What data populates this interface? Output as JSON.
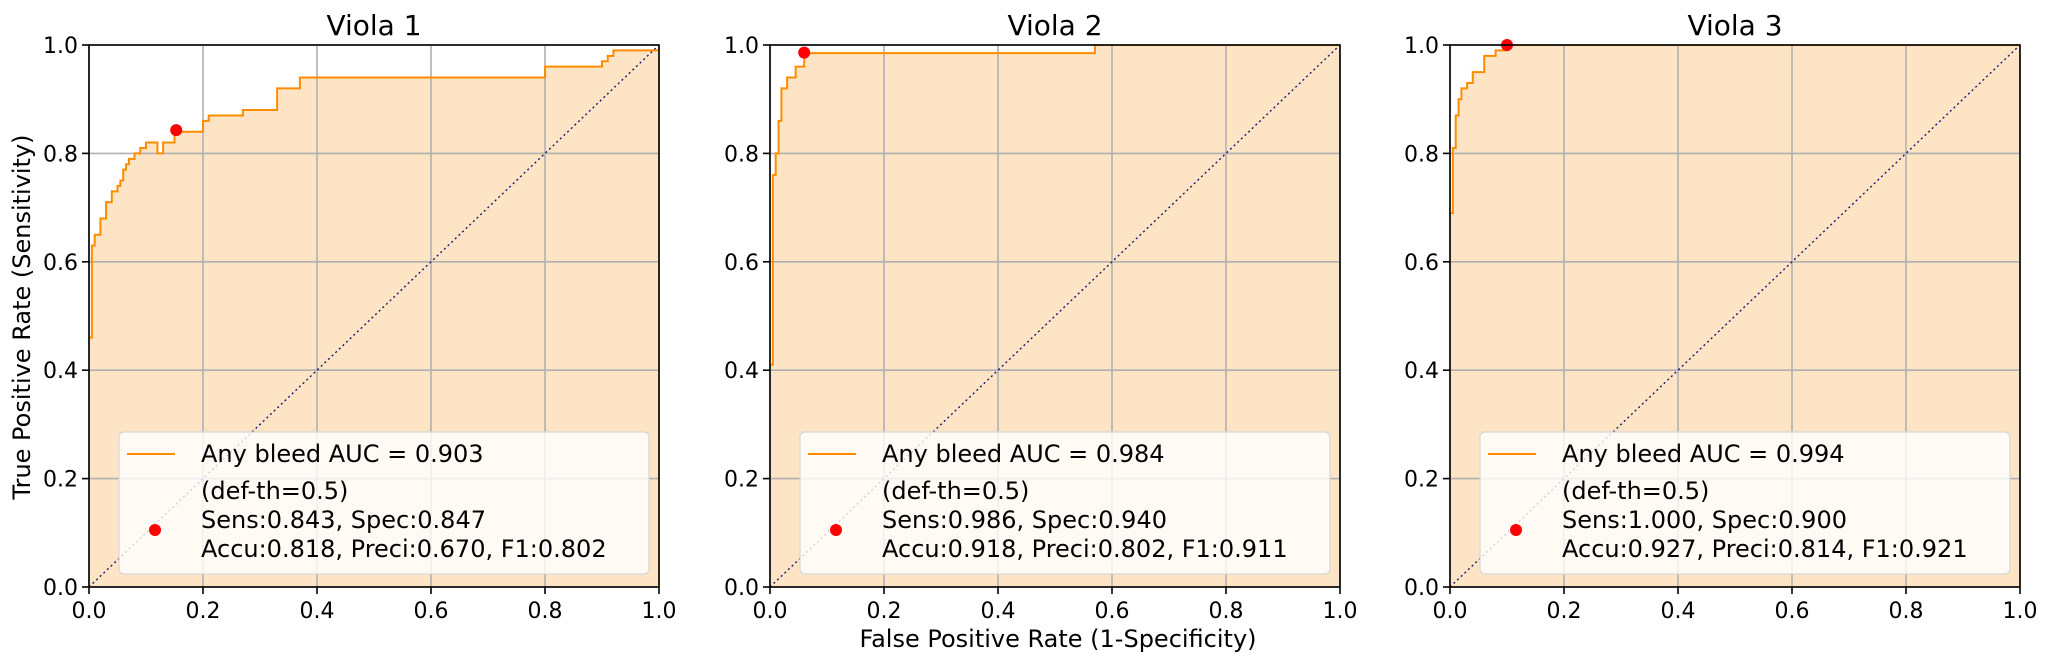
{
  "figure": {
    "xlabel": "False Positive Rate (1-Specificity)",
    "ylabel": "True Positive Rate (Sensitivity)"
  },
  "colors": {
    "roc_line": "#ff8c00",
    "fill": "#fde4c4",
    "point": "#ff0000",
    "diagonal": "#191970",
    "grid": "#b0b0b0",
    "legend_bg": "#ffffff"
  },
  "chart_data": [
    {
      "type": "line",
      "title": "Viola 1",
      "xlim": [
        0,
        1
      ],
      "ylim": [
        0,
        1
      ],
      "xticks": [
        "0.0",
        "0.2",
        "0.4",
        "0.6",
        "0.8",
        "1.0"
      ],
      "yticks": [
        "0.0",
        "0.2",
        "0.4",
        "0.6",
        "0.8",
        "1.0"
      ],
      "grid": true,
      "legend_position": "lower-right",
      "series": [
        {
          "name": "Any bleed AUC = 0.903",
          "x": [
            0,
            0.005,
            0.005,
            0.01,
            0.01,
            0.02,
            0.02,
            0.03,
            0.03,
            0.04,
            0.04,
            0.05,
            0.05,
            0.055,
            0.055,
            0.06,
            0.06,
            0.065,
            0.065,
            0.07,
            0.07,
            0.08,
            0.08,
            0.09,
            0.09,
            0.1,
            0.1,
            0.12,
            0.12,
            0.13,
            0.13,
            0.15,
            0.15,
            0.16,
            0.16,
            0.2,
            0.2,
            0.21,
            0.21,
            0.27,
            0.27,
            0.33,
            0.33,
            0.34,
            0.34,
            0.37,
            0.37,
            0.8,
            0.8,
            0.9,
            0.9,
            0.91,
            0.91,
            0.92,
            0.92,
            1.0
          ],
          "y": [
            0.46,
            0.46,
            0.63,
            0.63,
            0.65,
            0.65,
            0.68,
            0.68,
            0.71,
            0.71,
            0.73,
            0.73,
            0.74,
            0.74,
            0.75,
            0.75,
            0.77,
            0.77,
            0.78,
            0.78,
            0.79,
            0.79,
            0.8,
            0.8,
            0.81,
            0.81,
            0.82,
            0.82,
            0.8,
            0.8,
            0.82,
            0.82,
            0.84,
            0.84,
            0.84,
            0.84,
            0.86,
            0.86,
            0.87,
            0.87,
            0.88,
            0.88,
            0.92,
            0.92,
            0.92,
            0.92,
            0.94,
            0.94,
            0.96,
            0.96,
            0.97,
            0.97,
            0.98,
            0.98,
            0.99,
            0.99
          ]
        }
      ],
      "operating_point": {
        "x": 0.153,
        "y": 0.843
      },
      "legend": {
        "line_label": "Any bleed AUC = 0.903",
        "point_lines": [
          "(def-th=0.5)",
          "Sens:0.843, Spec:0.847",
          "Accu:0.818, Preci:0.670, F1:0.802"
        ]
      }
    },
    {
      "type": "line",
      "title": "Viola 2",
      "xlim": [
        0,
        1
      ],
      "ylim": [
        0,
        1
      ],
      "xticks": [
        "0.0",
        "0.2",
        "0.4",
        "0.6",
        "0.8",
        "1.0"
      ],
      "yticks": [
        "0.0",
        "0.2",
        "0.4",
        "0.6",
        "0.8",
        "1.0"
      ],
      "grid": true,
      "legend_position": "lower-right",
      "series": [
        {
          "name": "Any bleed AUC = 0.984",
          "x": [
            0,
            0.005,
            0.005,
            0.01,
            0.01,
            0.015,
            0.015,
            0.02,
            0.02,
            0.03,
            0.03,
            0.045,
            0.045,
            0.06,
            0.06,
            0.57,
            0.57,
            1.0
          ],
          "y": [
            0.41,
            0.41,
            0.76,
            0.76,
            0.8,
            0.8,
            0.86,
            0.86,
            0.92,
            0.92,
            0.94,
            0.94,
            0.96,
            0.96,
            0.985,
            0.985,
            1.0,
            1.0
          ]
        }
      ],
      "operating_point": {
        "x": 0.06,
        "y": 0.986
      },
      "legend": {
        "line_label": "Any bleed AUC = 0.984",
        "point_lines": [
          "(def-th=0.5)",
          "Sens:0.986, Spec:0.940",
          "Accu:0.918, Preci:0.802, F1:0.911"
        ]
      }
    },
    {
      "type": "line",
      "title": "Viola 3",
      "xlim": [
        0,
        1
      ],
      "ylim": [
        0,
        1
      ],
      "xticks": [
        "0.0",
        "0.2",
        "0.4",
        "0.6",
        "0.8",
        "1.0"
      ],
      "yticks": [
        "0.0",
        "0.2",
        "0.4",
        "0.6",
        "0.8",
        "1.0"
      ],
      "grid": true,
      "legend_position": "lower-right",
      "series": [
        {
          "name": "Any bleed AUC = 0.994",
          "x": [
            0,
            0.005,
            0.005,
            0.01,
            0.01,
            0.015,
            0.015,
            0.02,
            0.02,
            0.03,
            0.03,
            0.04,
            0.04,
            0.06,
            0.06,
            0.08,
            0.08,
            0.1,
            0.1,
            1.0
          ],
          "y": [
            0.69,
            0.69,
            0.81,
            0.81,
            0.87,
            0.87,
            0.9,
            0.9,
            0.92,
            0.92,
            0.93,
            0.93,
            0.95,
            0.95,
            0.98,
            0.98,
            0.99,
            0.99,
            1.0,
            1.0
          ]
        }
      ],
      "operating_point": {
        "x": 0.1,
        "y": 1.0
      },
      "legend": {
        "line_label": "Any bleed AUC = 0.994",
        "point_lines": [
          "(def-th=0.5)",
          "Sens:1.000, Spec:0.900",
          "Accu:0.927, Preci:0.814, F1:0.921"
        ]
      }
    }
  ]
}
